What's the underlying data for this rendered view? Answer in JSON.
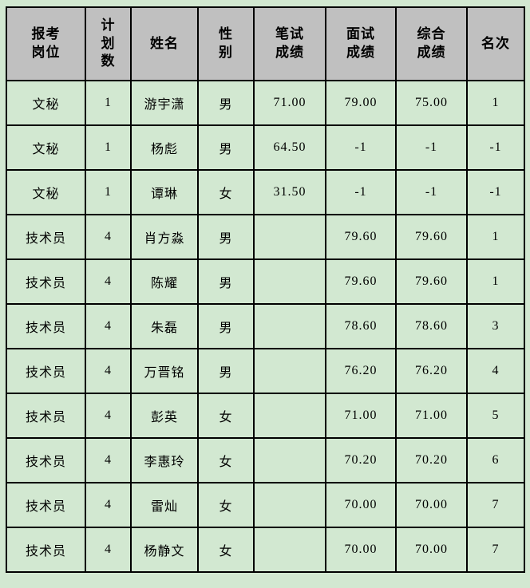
{
  "colors": {
    "page_background": "#d2e8d1",
    "header_background": "#c0c0c0",
    "cell_background": "#d2e8d1",
    "border": "#000000",
    "text": "#000000"
  },
  "table": {
    "columns": [
      {
        "label": "报考\n岗位",
        "width": 99
      },
      {
        "label": "计\n划\n数",
        "width": 57
      },
      {
        "label": "姓名",
        "width": 84
      },
      {
        "label": "性\n别",
        "width": 70
      },
      {
        "label": "笔试\n成绩",
        "width": 90
      },
      {
        "label": "面试\n成绩",
        "width": 88
      },
      {
        "label": "综合\n成绩",
        "width": 89
      },
      {
        "label": "名次",
        "width": 72
      }
    ],
    "rows": [
      [
        "文秘",
        "1",
        "游宇潇",
        "男",
        "71.00",
        "79.00",
        "75.00",
        "1"
      ],
      [
        "文秘",
        "1",
        "杨彪",
        "男",
        "64.50",
        "-1",
        "-1",
        "-1"
      ],
      [
        "文秘",
        "1",
        "谭琳",
        "女",
        "31.50",
        "-1",
        "-1",
        "-1"
      ],
      [
        "技术员",
        "4",
        "肖方淼",
        "男",
        "",
        "79.60",
        "79.60",
        "1"
      ],
      [
        "技术员",
        "4",
        "陈耀",
        "男",
        "",
        "79.60",
        "79.60",
        "1"
      ],
      [
        "技术员",
        "4",
        "朱磊",
        "男",
        "",
        "78.60",
        "78.60",
        "3"
      ],
      [
        "技术员",
        "4",
        "万晋铭",
        "男",
        "",
        "76.20",
        "76.20",
        "4"
      ],
      [
        "技术员",
        "4",
        "彭英",
        "女",
        "",
        "71.00",
        "71.00",
        "5"
      ],
      [
        "技术员",
        "4",
        "李惠玲",
        "女",
        "",
        "70.20",
        "70.20",
        "6"
      ],
      [
        "技术员",
        "4",
        "雷灿",
        "女",
        "",
        "70.00",
        "70.00",
        "7"
      ],
      [
        "技术员",
        "4",
        "杨静文",
        "女",
        "",
        "70.00",
        "70.00",
        "7"
      ]
    ]
  }
}
